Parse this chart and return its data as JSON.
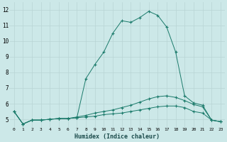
{
  "xlabel": "Humidex (Indice chaleur)",
  "ylabel": "",
  "bg_color": "#cce8e8",
  "grid_color": "#b8d4d4",
  "line_color": "#1a7a6a",
  "xlim": [
    -0.5,
    23.5
  ],
  "ylim": [
    4.5,
    12.5
  ],
  "xticks": [
    0,
    1,
    2,
    3,
    4,
    5,
    6,
    7,
    8,
    9,
    10,
    11,
    12,
    13,
    14,
    15,
    16,
    17,
    18,
    19,
    20,
    21,
    22,
    23
  ],
  "yticks": [
    5,
    6,
    7,
    8,
    9,
    10,
    11,
    12
  ],
  "series1_x": [
    0,
    1,
    2,
    3,
    4,
    5,
    6,
    7,
    8,
    9,
    10,
    11,
    12,
    13,
    14,
    15,
    16,
    17,
    18,
    19,
    20,
    21,
    22,
    23
  ],
  "series1_y": [
    5.5,
    4.7,
    4.95,
    4.95,
    5.0,
    5.05,
    5.05,
    5.1,
    5.15,
    5.2,
    5.3,
    5.35,
    5.4,
    5.5,
    5.6,
    5.7,
    5.8,
    5.85,
    5.85,
    5.75,
    5.5,
    5.4,
    4.95,
    4.85
  ],
  "series2_x": [
    0,
    1,
    2,
    3,
    4,
    5,
    6,
    7,
    8,
    9,
    10,
    11,
    12,
    13,
    14,
    15,
    16,
    17,
    18,
    19,
    20,
    21,
    22,
    23
  ],
  "series2_y": [
    5.5,
    4.7,
    4.95,
    4.95,
    5.0,
    5.05,
    5.05,
    5.15,
    5.25,
    5.4,
    5.5,
    5.6,
    5.75,
    5.9,
    6.1,
    6.3,
    6.45,
    6.5,
    6.4,
    6.2,
    5.95,
    5.8,
    4.95,
    4.85
  ],
  "series3_x": [
    0,
    1,
    2,
    3,
    4,
    5,
    6,
    7,
    8,
    9,
    10,
    11,
    12,
    13,
    14,
    15,
    16,
    17,
    18,
    19,
    20,
    21,
    22,
    23
  ],
  "series3_y": [
    5.5,
    4.7,
    4.95,
    4.95,
    5.0,
    5.05,
    5.05,
    5.1,
    7.6,
    8.5,
    9.3,
    10.5,
    11.3,
    11.2,
    11.5,
    11.9,
    11.65,
    10.9,
    9.3,
    6.5,
    6.05,
    5.9,
    4.95,
    4.85
  ]
}
